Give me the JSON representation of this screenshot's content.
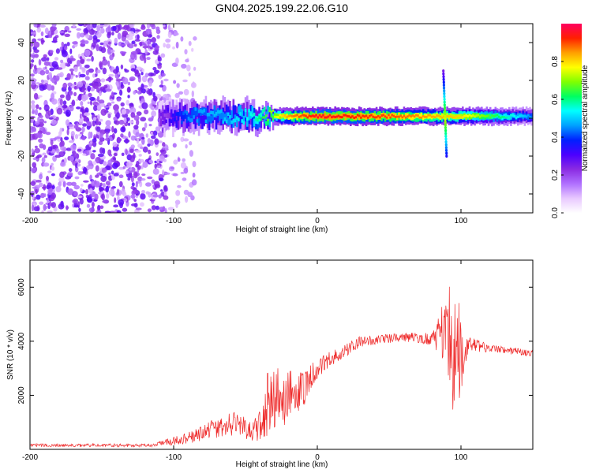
{
  "title": "GN04.2025.199.22.06.G10",
  "colors": {
    "snr_line": "#ee2a2a",
    "colormap": [
      "#ffffff",
      "#e8c8ff",
      "#b070ff",
      "#8a2be2",
      "#4b00ff",
      "#0020ff",
      "#00a0ff",
      "#00ffff",
      "#00ff60",
      "#80ff00",
      "#ffff00",
      "#ffa000",
      "#ff2000",
      "#ff0060"
    ]
  },
  "chart_data": [
    {
      "type": "heatmap",
      "xlabel": "Height of straight line (km)",
      "ylabel": "Frequency (Hz)",
      "xlim": [
        -200,
        150
      ],
      "ylim": [
        -50,
        50
      ],
      "xticks": [
        -200,
        -100,
        0,
        100
      ],
      "yticks": [
        -40,
        -20,
        0,
        20,
        40
      ],
      "colorbar": {
        "label": "Normalized spectral amplitude",
        "range": [
          0.0,
          1.0
        ],
        "ticks": [
          0.0,
          0.2,
          0.4,
          0.6,
          0.8
        ]
      },
      "ridge": {
        "frequency_hz": 1,
        "x_start": -110,
        "x_end": 150,
        "amplitude_profile": [
          {
            "x": -110,
            "amp": 0.25
          },
          {
            "x": -90,
            "amp": 0.45
          },
          {
            "x": -60,
            "amp": 0.5
          },
          {
            "x": -45,
            "amp": 0.55
          },
          {
            "x": -20,
            "amp": 0.85
          },
          {
            "x": 0,
            "amp": 0.95
          },
          {
            "x": 50,
            "amp": 0.9
          },
          {
            "x": 100,
            "amp": 0.8
          },
          {
            "x": 150,
            "amp": 0.45
          }
        ]
      },
      "scatter_region": {
        "x_start": -200,
        "x_end": -105,
        "f_range": [
          -50,
          50
        ]
      }
    },
    {
      "type": "line",
      "name": "SNR",
      "xlabel": "Height of straight line (km)",
      "ylabel": "SNR (10 * v/v)",
      "xlim": [
        -200,
        150
      ],
      "ylim": [
        0,
        7000
      ],
      "xticks": [
        -200,
        -100,
        0,
        100
      ],
      "yticks": [
        2000,
        4000,
        6000
      ],
      "envelope": [
        {
          "x": -200,
          "mean": 150,
          "noise": 60
        },
        {
          "x": -115,
          "mean": 150,
          "noise": 60
        },
        {
          "x": -105,
          "mean": 250,
          "noise": 120
        },
        {
          "x": -85,
          "mean": 500,
          "noise": 250
        },
        {
          "x": -70,
          "mean": 800,
          "noise": 400
        },
        {
          "x": -55,
          "mean": 1000,
          "noise": 450
        },
        {
          "x": -45,
          "mean": 600,
          "noise": 350
        },
        {
          "x": -35,
          "mean": 1700,
          "noise": 1300
        },
        {
          "x": -25,
          "mean": 1900,
          "noise": 1100
        },
        {
          "x": -10,
          "mean": 2200,
          "noise": 700
        },
        {
          "x": 0,
          "mean": 3000,
          "noise": 400
        },
        {
          "x": 15,
          "mean": 3500,
          "noise": 250
        },
        {
          "x": 30,
          "mean": 4000,
          "noise": 200
        },
        {
          "x": 60,
          "mean": 4150,
          "noise": 150
        },
        {
          "x": 80,
          "mean": 4100,
          "noise": 250
        },
        {
          "x": 88,
          "mean": 4300,
          "noise": 1200
        },
        {
          "x": 95,
          "mean": 3800,
          "noise": 2800
        },
        {
          "x": 100,
          "mean": 3500,
          "noise": 1500
        },
        {
          "x": 105,
          "mean": 3900,
          "noise": 300
        },
        {
          "x": 120,
          "mean": 3750,
          "noise": 150
        },
        {
          "x": 150,
          "mean": 3550,
          "noise": 120
        }
      ]
    }
  ]
}
